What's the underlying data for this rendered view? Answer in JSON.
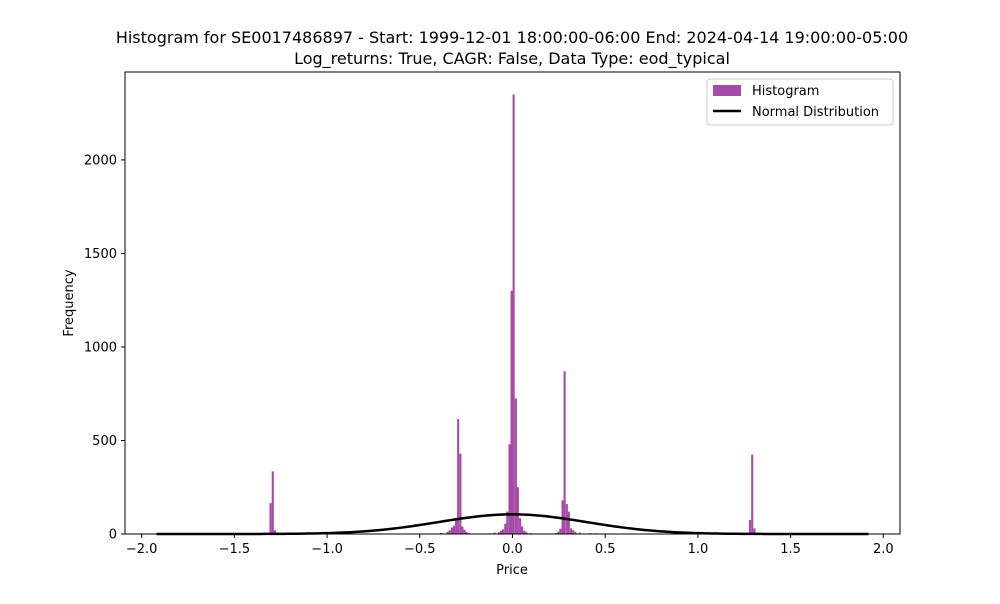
{
  "chart_data": {
    "type": "bar",
    "title": "Histogram for SE0017486897 - Start: 1999-12-01 18:00:00-06:00 End: 2024-04-14 19:00:00-05:00",
    "subtitle": "Log_returns: True, CAGR: False, Data Type: eod_typical",
    "xlabel": "Price",
    "ylabel": "Frequency",
    "xlim": [
      -2.09,
      2.09
    ],
    "ylim": [
      0,
      2470
    ],
    "xticks": [
      -2.0,
      -1.5,
      -1.0,
      -0.5,
      0.0,
      0.5,
      1.0,
      1.5,
      2.0
    ],
    "xtick_labels": [
      "−2.0",
      "−1.5",
      "−1.0",
      "−0.5",
      "0.0",
      "0.5",
      "1.0",
      "1.5",
      "2.0"
    ],
    "yticks": [
      0,
      500,
      1000,
      1500,
      2000
    ],
    "ytick_labels": [
      "0",
      "500",
      "1000",
      "1500",
      "2000"
    ],
    "grid": false,
    "legend_position": "top-right",
    "colors": {
      "histogram": "#800080",
      "histogram_alpha": 0.7,
      "normal": "#000000"
    },
    "series": [
      {
        "name": "Histogram",
        "kind": "histogram",
        "bin_width": 0.0115,
        "bins": [
          {
            "x": -1.305,
            "y": 165
          },
          {
            "x": -1.293,
            "y": 335
          },
          {
            "x": -1.281,
            "y": 20
          },
          {
            "x": -1.27,
            "y": 6
          },
          {
            "x": -1.316,
            "y": 6
          },
          {
            "x": -0.42,
            "y": 3
          },
          {
            "x": -0.385,
            "y": 6
          },
          {
            "x": -0.35,
            "y": 12
          },
          {
            "x": -0.339,
            "y": 20
          },
          {
            "x": -0.327,
            "y": 35
          },
          {
            "x": -0.316,
            "y": 45
          },
          {
            "x": -0.304,
            "y": 80
          },
          {
            "x": -0.293,
            "y": 615
          },
          {
            "x": -0.281,
            "y": 430
          },
          {
            "x": -0.27,
            "y": 40
          },
          {
            "x": -0.258,
            "y": 22
          },
          {
            "x": -0.247,
            "y": 10
          },
          {
            "x": -0.235,
            "y": 5
          },
          {
            "x": -0.12,
            "y": 4
          },
          {
            "x": -0.097,
            "y": 8
          },
          {
            "x": -0.074,
            "y": 10
          },
          {
            "x": -0.062,
            "y": 18
          },
          {
            "x": -0.051,
            "y": 25
          },
          {
            "x": -0.039,
            "y": 55
          },
          {
            "x": -0.028,
            "y": 120
          },
          {
            "x": -0.016,
            "y": 480
          },
          {
            "x": -0.005,
            "y": 1300
          },
          {
            "x": 0.006,
            "y": 2350
          },
          {
            "x": 0.018,
            "y": 725
          },
          {
            "x": 0.029,
            "y": 250
          },
          {
            "x": 0.041,
            "y": 85
          },
          {
            "x": 0.052,
            "y": 40
          },
          {
            "x": 0.064,
            "y": 18
          },
          {
            "x": 0.075,
            "y": 10
          },
          {
            "x": 0.098,
            "y": 5
          },
          {
            "x": 0.121,
            "y": 3
          },
          {
            "x": 0.235,
            "y": 5
          },
          {
            "x": 0.247,
            "y": 12
          },
          {
            "x": 0.258,
            "y": 28
          },
          {
            "x": 0.27,
            "y": 180
          },
          {
            "x": 0.281,
            "y": 870
          },
          {
            "x": 0.293,
            "y": 160
          },
          {
            "x": 0.304,
            "y": 120
          },
          {
            "x": 0.316,
            "y": 30
          },
          {
            "x": 0.327,
            "y": 20
          },
          {
            "x": 0.339,
            "y": 12
          },
          {
            "x": 0.362,
            "y": 8
          },
          {
            "x": 0.42,
            "y": 5
          },
          {
            "x": 0.454,
            "y": 4
          },
          {
            "x": 1.27,
            "y": 5
          },
          {
            "x": 1.281,
            "y": 75
          },
          {
            "x": 1.293,
            "y": 425
          },
          {
            "x": 1.305,
            "y": 30
          },
          {
            "x": 1.316,
            "y": 6
          }
        ]
      },
      {
        "name": "Normal Distribution",
        "kind": "line",
        "mean": 0.0,
        "std": 0.4,
        "peak": 105,
        "x_range": [
          -1.92,
          1.92
        ]
      }
    ]
  }
}
